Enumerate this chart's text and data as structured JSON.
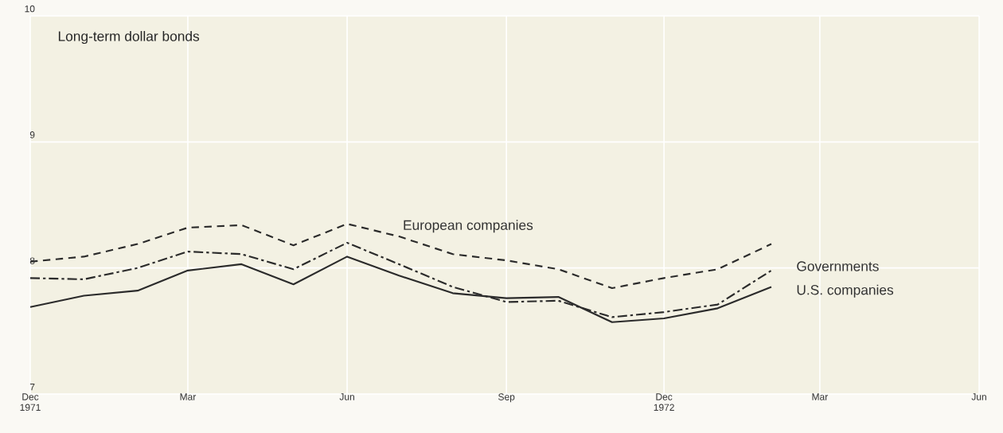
{
  "chart_data": {
    "type": "line",
    "title": "Long-term dollar bonds",
    "x": [
      "1971-12",
      "1972-01",
      "1972-02",
      "1972-03",
      "1972-04",
      "1972-05",
      "1972-06",
      "1972-07",
      "1972-08",
      "1972-09",
      "1972-10",
      "1972-11",
      "1972-12",
      "1973-01",
      "1973-02"
    ],
    "series": [
      {
        "name": "European companies",
        "color": "#2b2b2b",
        "line_style": "dashed",
        "values": [
          8.05,
          8.09,
          8.19,
          8.32,
          8.34,
          8.18,
          8.35,
          8.25,
          8.11,
          8.06,
          7.99,
          7.84,
          7.92,
          7.99,
          8.19
        ]
      },
      {
        "name": "Governments",
        "color": "#2b2b2b",
        "line_style": "dashdot",
        "values": [
          7.92,
          7.91,
          8.0,
          8.13,
          8.11,
          7.99,
          8.2,
          8.03,
          7.85,
          7.73,
          7.74,
          7.61,
          7.65,
          7.71,
          7.98
        ]
      },
      {
        "name": "U.S. companies",
        "color": "#2b2b2b",
        "line_style": "solid",
        "values": [
          7.69,
          7.78,
          7.82,
          7.98,
          8.03,
          7.87,
          8.09,
          7.94,
          7.8,
          7.76,
          7.77,
          7.57,
          7.6,
          7.68,
          7.85
        ]
      }
    ],
    "xlim": [
      "1971-12",
      "1973-06"
    ],
    "xticks": [
      {
        "value": "1971-12",
        "label": "Dec 1971"
      },
      {
        "value": "1972-03",
        "label": "Mar"
      },
      {
        "value": "1972-06",
        "label": "Jun"
      },
      {
        "value": "1972-09",
        "label": "Sep"
      },
      {
        "value": "1972-12",
        "label": "Dec 1972"
      },
      {
        "value": "1973-03",
        "label": "Mar"
      },
      {
        "value": "1973-06",
        "label": "Jun"
      }
    ],
    "ylim": [
      7,
      10
    ],
    "yticks": [
      7,
      8,
      9,
      10
    ],
    "grid": true,
    "legend": false
  }
}
